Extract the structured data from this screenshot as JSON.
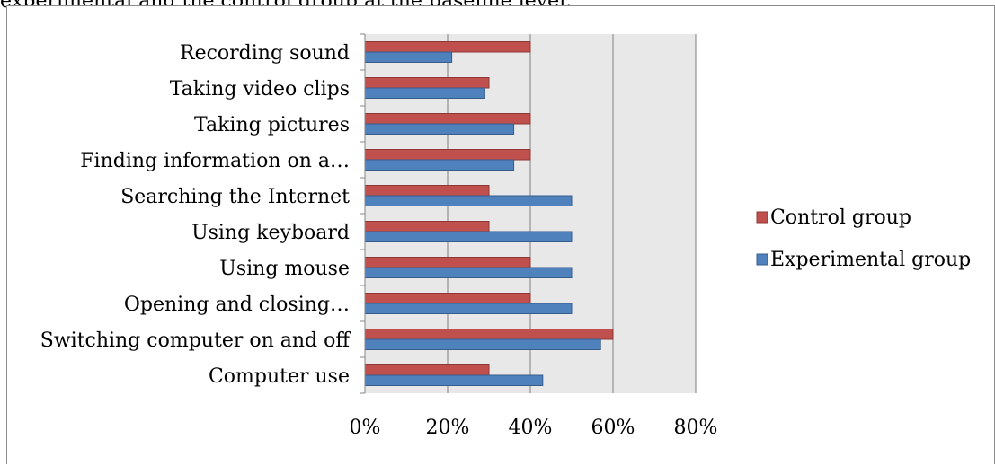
{
  "caption_fragment": "experimental and the control group at the baseline level.",
  "colors": {
    "control": "#c0504d",
    "control_stroke": "#8c3836",
    "experimental": "#4f81bd",
    "experimental_stroke": "#385d8a",
    "plot_background": "#e8e8e8",
    "gridline": "#7f7f7f"
  },
  "chart_data": {
    "type": "bar",
    "orientation": "horizontal",
    "categories": [
      "Recording sound",
      "Taking video clips",
      "Taking pictures",
      "Finding information on a…",
      "Searching the Internet",
      "Using keyboard",
      "Using mouse",
      "Opening and closing…",
      "Switching computer on and off",
      "Computer use"
    ],
    "series": [
      {
        "name": "Control group",
        "values": [
          40,
          30,
          40,
          40,
          30,
          30,
          40,
          40,
          60,
          30
        ]
      },
      {
        "name": "Experimental group",
        "values": [
          21,
          29,
          36,
          36,
          50,
          50,
          50,
          50,
          57,
          43
        ]
      }
    ],
    "x_ticks": [
      "0%",
      "20%",
      "40%",
      "60%",
      "80%"
    ],
    "xlim": [
      0,
      80
    ],
    "grid": true,
    "legend_position": "right"
  }
}
